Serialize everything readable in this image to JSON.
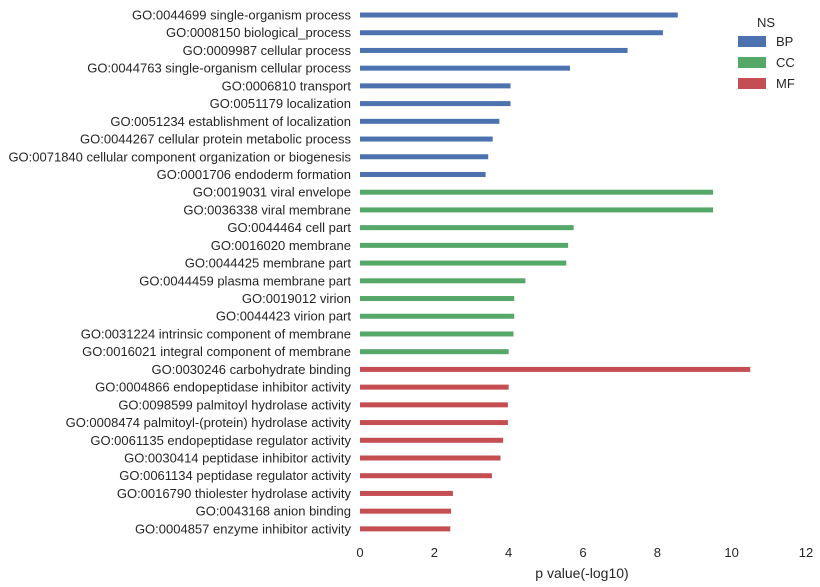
{
  "chart_data": {
    "type": "bar",
    "orientation": "horizontal",
    "xlabel": "p value(-log10)",
    "xlim": [
      0,
      12
    ],
    "xticks": [
      "0",
      "2",
      "4",
      "6",
      "8",
      "10",
      "12"
    ],
    "grid": false,
    "legend": {
      "title": "NS",
      "placement": "top-right",
      "entries": [
        {
          "name": "BP",
          "color": "#4c72b0"
        },
        {
          "name": "CC",
          "color": "#55a868"
        },
        {
          "name": "MF",
          "color": "#c44e52"
        }
      ]
    },
    "categories": [
      "GO:0044699 single-organism process",
      "GO:0008150 biological_process",
      "GO:0009987 cellular process",
      "GO:0044763 single-organism cellular process",
      "GO:0006810 transport",
      "GO:0051179 localization",
      "GO:0051234 establishment of localization",
      "GO:0044267 cellular protein metabolic process",
      "GO:0071840 cellular component organization or biogenesis",
      "GO:0001706 endoderm formation",
      "GO:0019031 viral envelope",
      "GO:0036338 viral membrane",
      "GO:0044464 cell part",
      "GO:0016020 membrane",
      "GO:0044425 membrane part",
      "GO:0044459 plasma membrane part",
      "GO:0019012 virion",
      "GO:0044423 virion part",
      "GO:0031224 intrinsic component of membrane",
      "GO:0016021 integral component of membrane",
      "GO:0030246 carbohydrate binding",
      "GO:0004866 endopeptidase inhibitor activity",
      "GO:0098599 palmitoyl hydrolase activity",
      "GO:0008474 palmitoyl-(protein) hydrolase activity",
      "GO:0061135 endopeptidase regulator activity",
      "GO:0030414 peptidase inhibitor activity",
      "GO:0061134 peptidase regulator activity",
      "GO:0016790 thiolester hydrolase activity",
      "GO:0043168 anion binding",
      "GO:0004857 enzyme inhibitor activity"
    ],
    "values": [
      8.55,
      8.15,
      7.2,
      5.65,
      4.05,
      4.05,
      3.75,
      3.57,
      3.45,
      3.38,
      9.5,
      9.5,
      5.75,
      5.6,
      5.55,
      4.45,
      4.15,
      4.15,
      4.13,
      4.0,
      10.5,
      4.0,
      3.98,
      3.98,
      3.85,
      3.78,
      3.55,
      2.5,
      2.45,
      2.43
    ],
    "groups": [
      "BP",
      "BP",
      "BP",
      "BP",
      "BP",
      "BP",
      "BP",
      "BP",
      "BP",
      "BP",
      "CC",
      "CC",
      "CC",
      "CC",
      "CC",
      "CC",
      "CC",
      "CC",
      "CC",
      "CC",
      "MF",
      "MF",
      "MF",
      "MF",
      "MF",
      "MF",
      "MF",
      "MF",
      "MF",
      "MF"
    ]
  }
}
